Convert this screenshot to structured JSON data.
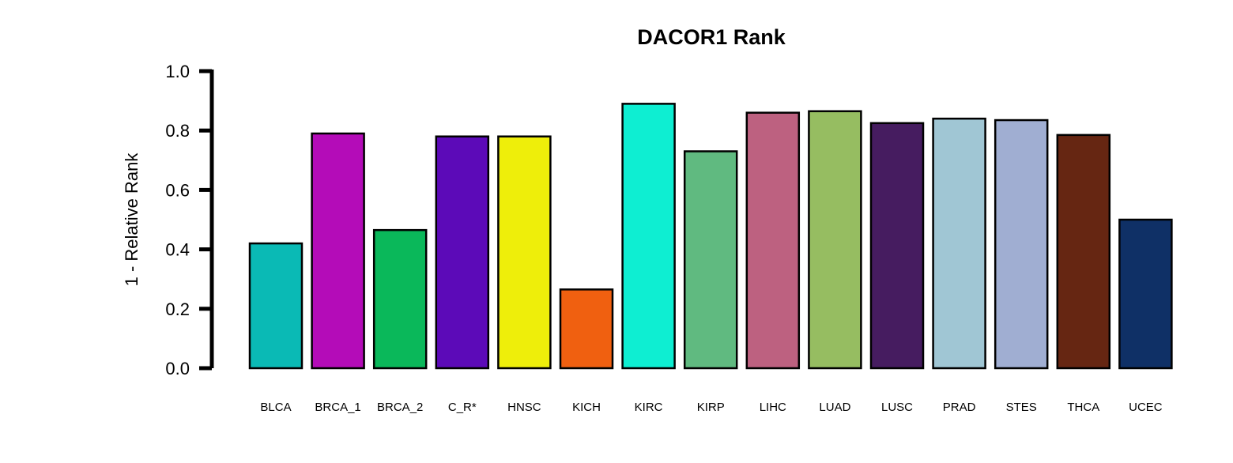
{
  "chart_data": {
    "type": "bar",
    "title": "DACOR1 Rank",
    "xlabel": "",
    "ylabel": "1 - Relative Rank",
    "ylim": [
      0,
      1.0
    ],
    "yticks": [
      "0.0",
      "0.2",
      "0.4",
      "0.6",
      "0.8",
      "1.0"
    ],
    "grid": false,
    "categories": [
      "BLCA",
      "BRCA_1",
      "BRCA_2",
      "C_R*",
      "HNSC",
      "KICH",
      "KIRC",
      "KIRP",
      "LIHC",
      "LUAD",
      "LUSC",
      "PRAD",
      "STES",
      "THCA",
      "UCEC"
    ],
    "values": [
      0.42,
      0.79,
      0.465,
      0.78,
      0.78,
      0.265,
      0.89,
      0.73,
      0.86,
      0.865,
      0.825,
      0.84,
      0.835,
      0.785,
      0.5
    ],
    "colors": [
      "#0ABAB5",
      "#B40CB8",
      "#0AB85A",
      "#5C0AB8",
      "#EEEE0A",
      "#F06010",
      "#0EEED2",
      "#60BA80",
      "#BD6180",
      "#96BD61",
      "#461C60",
      "#A0C6D4",
      "#A0AED2",
      "#662612",
      "#0F3066"
    ]
  }
}
